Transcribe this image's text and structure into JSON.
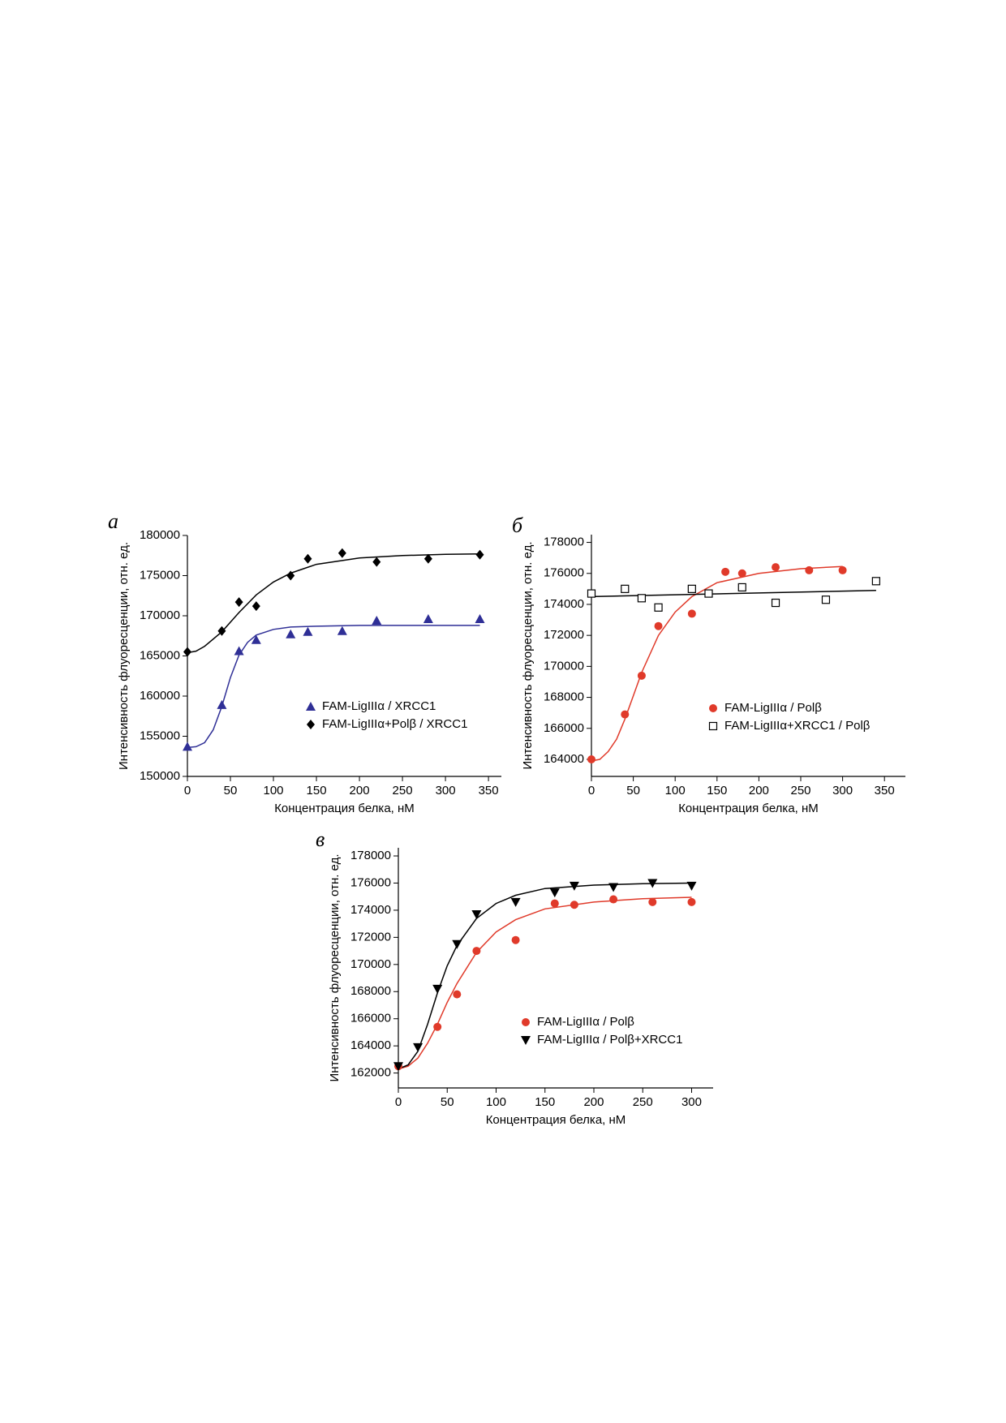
{
  "chart_data": [
    {
      "type": "scatter",
      "label": "а",
      "xlabel": "Концентрация белка, нМ",
      "ylabel": "Интенсивность флуоресценции, отн. ед.",
      "xlim": [
        0,
        365
      ],
      "ylim": [
        150000,
        180000
      ],
      "xticks": [
        0,
        50,
        100,
        150,
        200,
        250,
        300,
        350
      ],
      "yticks": [
        150000,
        155000,
        160000,
        165000,
        170000,
        175000,
        180000
      ],
      "series": [
        {
          "name": "FAM-LigIIIα / XRCC1",
          "color": "#2f2f96",
          "marker": "triangle",
          "x": [
            0,
            40,
            60,
            80,
            120,
            140,
            180,
            220,
            280,
            340
          ],
          "values": [
            153700,
            158900,
            165600,
            167000,
            167700,
            168000,
            168100,
            169400,
            169600,
            169600
          ]
        },
        {
          "name": "FAM-LigIIIα+Polβ / XRCC1",
          "color": "#000000",
          "marker": "diamond",
          "x": [
            0,
            40,
            60,
            80,
            120,
            140,
            180,
            220,
            280,
            340
          ],
          "values": [
            165500,
            168100,
            171700,
            171200,
            175000,
            177100,
            177800,
            176700,
            177100,
            177600
          ]
        }
      ],
      "fits": [
        {
          "color": "#2f2f96",
          "x": [
            0,
            10,
            20,
            30,
            40,
            50,
            60,
            70,
            80,
            100,
            120,
            150,
            200,
            250,
            300,
            340
          ],
          "values": [
            153600,
            153700,
            154200,
            155800,
            158700,
            162300,
            165100,
            166700,
            167600,
            168300,
            168600,
            168700,
            168800,
            168800,
            168800,
            168800
          ]
        },
        {
          "color": "#000000",
          "x": [
            0,
            10,
            20,
            40,
            60,
            80,
            100,
            120,
            150,
            200,
            250,
            300,
            340
          ],
          "values": [
            165400,
            165600,
            166200,
            168000,
            170400,
            172600,
            174200,
            175300,
            176400,
            177200,
            177500,
            177650,
            177700
          ]
        }
      ]
    },
    {
      "type": "scatter",
      "label": "б",
      "xlabel": "Концентрация белка, нМ",
      "ylabel": "Интенсивность флуоресценции, отн. ед.",
      "xlim": [
        0,
        375
      ],
      "ylim": [
        162900,
        178500
      ],
      "xticks": [
        0,
        50,
        100,
        150,
        200,
        250,
        300,
        350
      ],
      "yticks": [
        164000,
        166000,
        168000,
        170000,
        172000,
        174000,
        176000,
        178000
      ],
      "series": [
        {
          "name": "FAM-LigIIIα / Polβ",
          "color": "#e03a2a",
          "marker": "circle",
          "x": [
            0,
            40,
            60,
            80,
            120,
            160,
            180,
            220,
            260,
            300
          ],
          "values": [
            164000,
            166900,
            169400,
            172600,
            173400,
            176100,
            176000,
            176400,
            176200,
            176200
          ]
        },
        {
          "name": "FAM-LigIIIα+XRCC1 / Polβ",
          "color": "#000000",
          "marker": "square",
          "x": [
            0,
            40,
            60,
            80,
            120,
            140,
            180,
            220,
            280,
            340
          ],
          "values": [
            174700,
            175000,
            174400,
            173800,
            175000,
            174700,
            175100,
            174100,
            174300,
            175500
          ]
        }
      ],
      "fits": [
        {
          "color": "#e03a2a",
          "x": [
            0,
            10,
            20,
            30,
            40,
            50,
            60,
            80,
            100,
            120,
            150,
            200,
            250,
            300
          ],
          "values": [
            163900,
            164000,
            164500,
            165300,
            166600,
            168100,
            169600,
            172000,
            173500,
            174500,
            175400,
            176000,
            176300,
            176450
          ]
        },
        {
          "color": "#000000",
          "x": [
            0,
            340
          ],
          "values": [
            174500,
            174900
          ]
        }
      ]
    },
    {
      "type": "scatter",
      "label": "в",
      "xlabel": "Концентрация белка, нМ",
      "ylabel": "Интенсивность флуоресценции, отн. ед.",
      "xlim": [
        0,
        322
      ],
      "ylim": [
        160900,
        178600
      ],
      "xticks": [
        0,
        50,
        100,
        150,
        200,
        250,
        300
      ],
      "yticks": [
        162000,
        164000,
        166000,
        168000,
        170000,
        172000,
        174000,
        176000,
        178000
      ],
      "series": [
        {
          "name": "FAM-LigIIIα / Polβ",
          "color": "#e03a2a",
          "marker": "circle",
          "x": [
            0,
            40,
            60,
            80,
            120,
            160,
            180,
            220,
            260,
            300
          ],
          "values": [
            162500,
            165400,
            167800,
            171000,
            171800,
            174500,
            174400,
            174800,
            174600,
            174600
          ]
        },
        {
          "name": "FAM-LigIIIα / Polβ+XRCC1",
          "color": "#000000",
          "marker": "triangle-down",
          "x": [
            0,
            20,
            40,
            60,
            80,
            120,
            160,
            180,
            220,
            260,
            300
          ],
          "values": [
            162500,
            163900,
            168200,
            171500,
            173700,
            174600,
            175300,
            175800,
            175700,
            176000,
            175800
          ]
        }
      ],
      "fits": [
        {
          "color": "#e03a2a",
          "x": [
            0,
            10,
            20,
            30,
            40,
            50,
            60,
            80,
            100,
            120,
            150,
            200,
            250,
            300
          ],
          "values": [
            162300,
            162500,
            163100,
            164200,
            165600,
            167200,
            168600,
            170900,
            172400,
            173300,
            174100,
            174600,
            174850,
            174950
          ]
        },
        {
          "color": "#000000",
          "x": [
            0,
            10,
            20,
            30,
            40,
            50,
            60,
            80,
            100,
            120,
            150,
            200,
            250,
            300
          ],
          "values": [
            162300,
            162600,
            163600,
            165600,
            167900,
            169900,
            171400,
            173400,
            174500,
            175100,
            175600,
            175850,
            175950,
            176000
          ]
        }
      ]
    }
  ]
}
